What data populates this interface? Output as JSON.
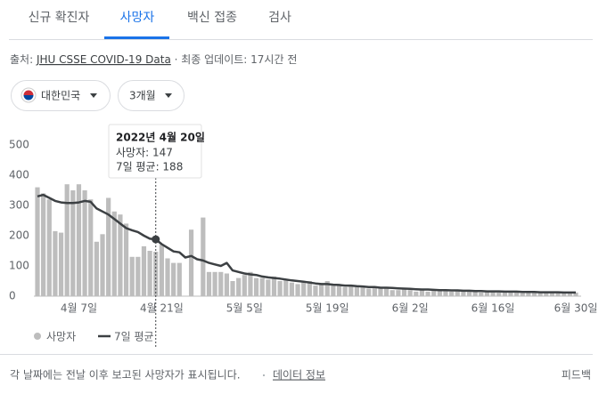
{
  "tabs": [
    "신규 확진자",
    "사망자",
    "백신 접종",
    "검사"
  ],
  "source": {
    "prefix": "출처: ",
    "link": "JHU CSSE COVID-19 Data",
    "suffix": " · 최종 업데이트: 17시간 전"
  },
  "filters": {
    "region": "대한민국",
    "period": "3개월"
  },
  "tooltip": {
    "date": "2022년 4월 20일",
    "lines": [
      "사망자: 147",
      "7일 평균: 188"
    ],
    "index": 20
  },
  "chart_data": {
    "type": "bar-line",
    "categories": [
      null,
      null,
      null,
      null,
      null,
      null,
      null,
      "4월 7일",
      null,
      null,
      null,
      null,
      null,
      null,
      null,
      null,
      null,
      null,
      null,
      null,
      null,
      "4월 21일",
      null,
      null,
      null,
      null,
      null,
      null,
      null,
      null,
      null,
      null,
      null,
      null,
      null,
      "5월 5일",
      null,
      null,
      null,
      null,
      null,
      null,
      null,
      null,
      null,
      null,
      null,
      null,
      null,
      "5월 19일",
      null,
      null,
      null,
      null,
      null,
      null,
      null,
      null,
      null,
      null,
      null,
      null,
      null,
      "6월 2일",
      null,
      null,
      null,
      null,
      null,
      null,
      null,
      null,
      null,
      null,
      null,
      null,
      null,
      "6월 16일",
      null,
      null,
      null,
      null,
      null,
      null,
      null,
      null,
      null,
      null,
      null,
      null,
      null,
      "6월 30일"
    ],
    "series": [
      {
        "name": "사망자",
        "color": "#bdbdbd",
        "values": [
          360,
          340,
          320,
          215,
          210,
          370,
          350,
          370,
          350,
          320,
          180,
          205,
          325,
          280,
          270,
          240,
          130,
          130,
          165,
          150,
          147,
          170,
          125,
          110,
          110,
          0,
          220,
          0,
          260,
          80,
          80,
          80,
          75,
          50,
          60,
          70,
          80,
          60,
          60,
          55,
          65,
          50,
          55,
          45,
          40,
          45,
          50,
          35,
          40,
          50,
          35,
          40,
          30,
          35,
          30,
          30,
          25,
          30,
          25,
          30,
          20,
          20,
          25,
          20,
          15,
          25,
          15,
          20,
          18,
          20,
          15,
          18,
          15,
          20,
          15,
          12,
          18,
          15,
          12,
          15,
          15,
          12,
          10,
          15,
          12,
          10,
          15,
          12,
          10,
          12,
          10,
          12
        ]
      },
      {
        "name": "7일 평균",
        "color": "#3c4043",
        "values": [
          330,
          335,
          325,
          315,
          310,
          308,
          308,
          310,
          315,
          312,
          290,
          280,
          270,
          255,
          240,
          225,
          218,
          212,
          200,
          190,
          188,
          172,
          160,
          148,
          145,
          128,
          133,
          122,
          118,
          110,
          105,
          100,
          110,
          85,
          80,
          75,
          72,
          70,
          65,
          62,
          60,
          58,
          55,
          52,
          50,
          48,
          45,
          42,
          40,
          40,
          38,
          37,
          35,
          35,
          33,
          32,
          30,
          30,
          28,
          28,
          27,
          26,
          25,
          24,
          23,
          22,
          22,
          21,
          20,
          20,
          19,
          19,
          18,
          18,
          17,
          17,
          16,
          16,
          16,
          15,
          15,
          15,
          14,
          14,
          14,
          13,
          13,
          13,
          13,
          12,
          12,
          12
        ]
      }
    ],
    "ylim": [
      0,
      500
    ],
    "yticks": [
      0,
      100,
      200,
      300,
      400,
      500
    ]
  },
  "footer": {
    "note": "각 날짜에는 전날 이후 보고된 사망자가 표시됩니다.",
    "link": "데이터 정보",
    "feedback": "피드백"
  }
}
